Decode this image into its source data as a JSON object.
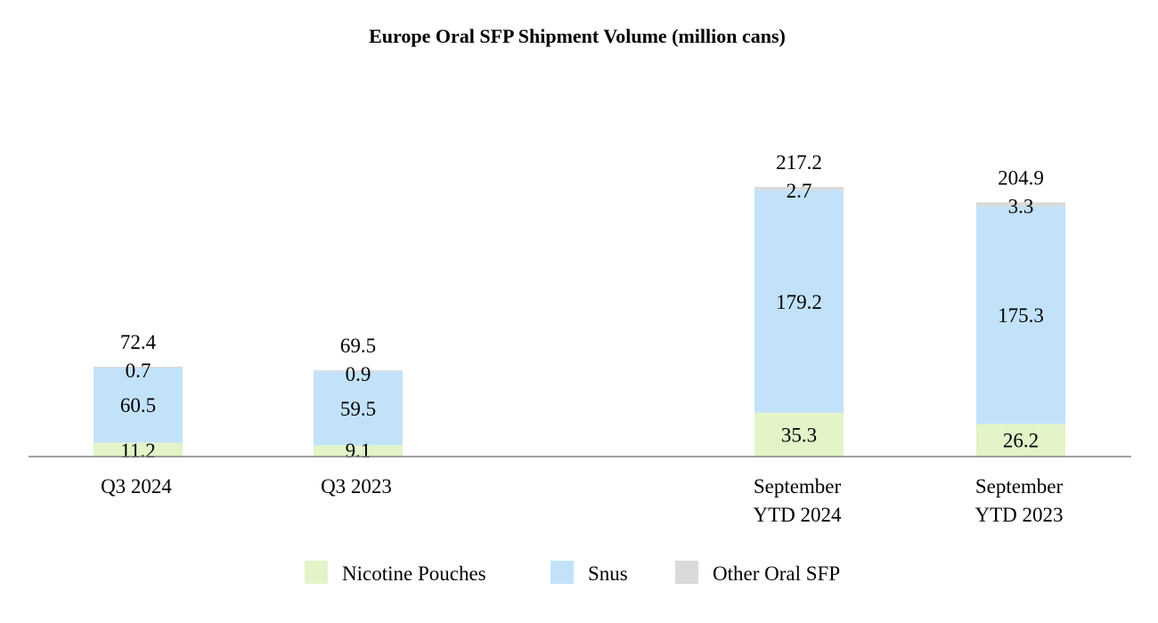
{
  "chart_data": {
    "type": "bar",
    "stacked": true,
    "title": "Europe Oral SFP Shipment Volume (million cans)",
    "xlabel": "",
    "ylabel": "",
    "ylim": [
      0,
      217.2
    ],
    "grid": false,
    "legend_position": "bottom-center",
    "categories": [
      [
        "Q3 2024"
      ],
      [
        "Q3 2023"
      ],
      [
        "September",
        "YTD 2024"
      ],
      [
        "September",
        "YTD 2023"
      ]
    ],
    "series": [
      {
        "name": "Nicotine Pouches",
        "color": "#e2f4c8",
        "values": [
          11.2,
          9.1,
          35.3,
          26.2
        ],
        "labels": [
          "11.2",
          "9.1",
          "35.3",
          "26.2"
        ]
      },
      {
        "name": "Snus",
        "color": "#c2e2fa",
        "values": [
          60.5,
          59.5,
          179.2,
          175.3
        ],
        "labels": [
          "60.5",
          "59.5",
          "179.2",
          "175.3"
        ]
      },
      {
        "name": "Other Oral SFP",
        "color": "#dadada",
        "values": [
          0.7,
          0.9,
          2.7,
          3.3
        ],
        "labels": [
          "0.7",
          "0.9",
          "2.7",
          "3.3"
        ]
      }
    ],
    "totals": [
      72.4,
      69.5,
      217.2,
      204.9
    ],
    "total_labels": [
      "72.4",
      "69.5",
      "217.2",
      "204.9"
    ],
    "axis_color": "#808080"
  }
}
